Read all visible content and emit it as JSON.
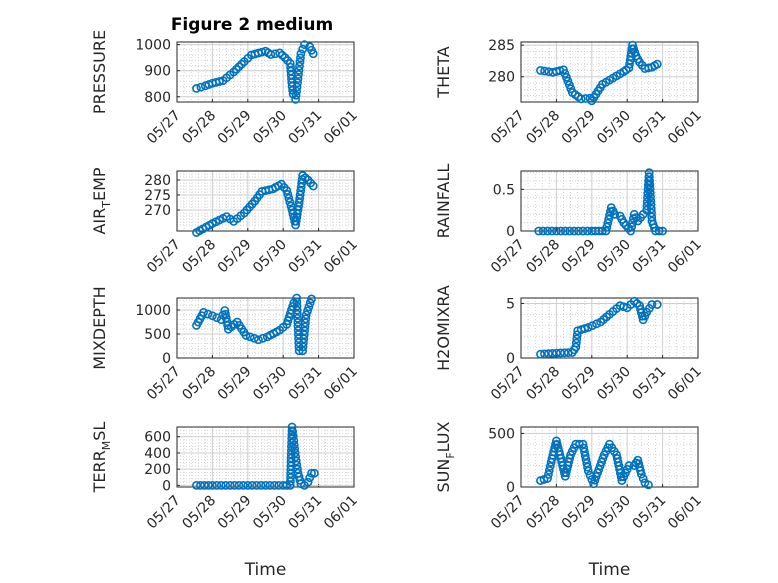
{
  "figure": {
    "title": "Figure 2 medium"
  },
  "chart_data": [
    {
      "type": "scatter",
      "name": "PRESSURE",
      "ylabel": "PRESSURE",
      "xlim": [
        "05/27",
        "06/01"
      ],
      "ylim": [
        780,
        1010
      ],
      "yticks": [
        800,
        900,
        1000
      ],
      "ytick_labels": [
        "800",
        "900",
        "1000"
      ],
      "xticks": [
        "05/27",
        "05/28",
        "05/29",
        "05/30",
        "05/31",
        "06/01"
      ],
      "xlabel": "",
      "points": [
        [
          0.55,
          832
        ],
        [
          0.8,
          842
        ],
        [
          1.0,
          852
        ],
        [
          1.3,
          862
        ],
        [
          1.6,
          895
        ],
        [
          1.9,
          935
        ],
        [
          2.1,
          960
        ],
        [
          2.5,
          975
        ],
        [
          2.65,
          962
        ],
        [
          2.9,
          968
        ],
        [
          3.05,
          950
        ],
        [
          3.2,
          928
        ],
        [
          3.25,
          840
        ],
        [
          3.28,
          810
        ],
        [
          3.35,
          790
        ],
        [
          3.5,
          965
        ],
        [
          3.6,
          1000
        ],
        [
          3.75,
          992
        ],
        [
          3.85,
          965
        ]
      ]
    },
    {
      "type": "scatter",
      "name": "THETA",
      "ylabel": "THETA",
      "xlim": [
        "05/27",
        "06/01"
      ],
      "ylim": [
        276,
        285.5
      ],
      "yticks": [
        280,
        285
      ],
      "ytick_labels": [
        "280",
        "285"
      ],
      "xticks": [
        "05/27",
        "05/28",
        "05/29",
        "05/30",
        "05/31",
        "06/01"
      ],
      "xlabel": "",
      "points": [
        [
          0.55,
          281
        ],
        [
          0.9,
          280.7
        ],
        [
          1.2,
          281.1
        ],
        [
          1.45,
          277.5
        ],
        [
          1.7,
          276.5
        ],
        [
          1.95,
          276.6
        ],
        [
          2.0,
          276.2
        ],
        [
          2.3,
          278.8
        ],
        [
          2.6,
          279.8
        ],
        [
          2.9,
          280.8
        ],
        [
          3.05,
          281.4
        ],
        [
          3.15,
          285
        ],
        [
          3.25,
          283.3
        ],
        [
          3.35,
          282.3
        ],
        [
          3.5,
          281.3
        ],
        [
          3.7,
          281.5
        ],
        [
          3.85,
          282
        ]
      ]
    },
    {
      "type": "scatter",
      "name": "AIR_TEMP",
      "ylabel": "AIR_TEMP",
      "xlim": [
        "05/27",
        "06/01"
      ],
      "ylim": [
        263,
        283
      ],
      "yticks": [
        270,
        275,
        280
      ],
      "ytick_labels": [
        "270",
        "275",
        "280"
      ],
      "xticks": [
        "05/27",
        "05/28",
        "05/29",
        "05/30",
        "05/31",
        "06/01"
      ],
      "xlabel": "",
      "points": [
        [
          0.55,
          262.5
        ],
        [
          1.0,
          265.5
        ],
        [
          1.4,
          267.8
        ],
        [
          1.6,
          266.2
        ],
        [
          1.9,
          269
        ],
        [
          2.2,
          273
        ],
        [
          2.4,
          276.2
        ],
        [
          2.7,
          277
        ],
        [
          2.95,
          278.6
        ],
        [
          3.1,
          276.5
        ],
        [
          3.25,
          270
        ],
        [
          3.3,
          267.5
        ],
        [
          3.35,
          265
        ],
        [
          3.45,
          272.5
        ],
        [
          3.55,
          281.5
        ],
        [
          3.7,
          280
        ],
        [
          3.85,
          278
        ]
      ]
    },
    {
      "type": "scatter",
      "name": "RAINFALL",
      "ylabel": "RAINFALL",
      "xlim": [
        "05/27",
        "06/01"
      ],
      "ylim": [
        0,
        0.72
      ],
      "yticks": [
        0,
        0.5
      ],
      "ytick_labels": [
        "0",
        "0.5"
      ],
      "xticks": [
        "05/27",
        "05/28",
        "05/29",
        "05/30",
        "05/31",
        "06/01"
      ],
      "xlabel": "",
      "points": [
        [
          0.5,
          0
        ],
        [
          1.0,
          0
        ],
        [
          1.5,
          0
        ],
        [
          2.0,
          0
        ],
        [
          2.4,
          0
        ],
        [
          2.55,
          0.28
        ],
        [
          2.65,
          0.2
        ],
        [
          2.8,
          0.18
        ],
        [
          2.9,
          0.1
        ],
        [
          3.1,
          0
        ],
        [
          3.2,
          0.2
        ],
        [
          3.3,
          0.12
        ],
        [
          3.45,
          0.2
        ],
        [
          3.55,
          0.25
        ],
        [
          3.62,
          0.7
        ],
        [
          3.7,
          0.12
        ],
        [
          3.8,
          0
        ],
        [
          4.0,
          0
        ]
      ]
    },
    {
      "type": "scatter",
      "name": "MIXDEPTH",
      "ylabel": "MIXDEPTH",
      "xlim": [
        "05/27",
        "06/01"
      ],
      "ylim": [
        0,
        1250
      ],
      "yticks": [
        0,
        500,
        1000
      ],
      "ytick_labels": [
        "0",
        "500",
        "1000"
      ],
      "xticks": [
        "05/27",
        "05/28",
        "05/29",
        "05/30",
        "05/31",
        "06/01"
      ],
      "xlabel": "",
      "points": [
        [
          0.55,
          680
        ],
        [
          0.75,
          950
        ],
        [
          1.0,
          880
        ],
        [
          1.25,
          800
        ],
        [
          1.35,
          990
        ],
        [
          1.45,
          600
        ],
        [
          1.7,
          750
        ],
        [
          1.95,
          470
        ],
        [
          2.3,
          380
        ],
        [
          2.55,
          440
        ],
        [
          2.9,
          580
        ],
        [
          3.1,
          700
        ],
        [
          3.3,
          1150
        ],
        [
          3.38,
          1250
        ],
        [
          3.45,
          150
        ],
        [
          3.55,
          150
        ],
        [
          3.65,
          900
        ],
        [
          3.8,
          1230
        ]
      ]
    },
    {
      "type": "scatter",
      "name": "H2OMIXRA",
      "ylabel": "H2OMIXRA",
      "xlim": [
        "05/27",
        "06/01"
      ],
      "ylim": [
        0,
        5.5
      ],
      "yticks": [
        0,
        5
      ],
      "ytick_labels": [
        "0",
        "5"
      ],
      "xticks": [
        "05/27",
        "05/28",
        "05/29",
        "05/30",
        "05/31",
        "06/01"
      ],
      "xlabel": "",
      "points": [
        [
          0.55,
          0.35
        ],
        [
          1.0,
          0.45
        ],
        [
          1.45,
          0.5
        ],
        [
          1.55,
          1.0
        ],
        [
          1.6,
          2.5
        ],
        [
          1.9,
          2.8
        ],
        [
          2.25,
          3.3
        ],
        [
          2.5,
          4.0
        ],
        [
          2.8,
          4.8
        ],
        [
          3.0,
          4.6
        ],
        [
          3.2,
          5.2
        ],
        [
          3.35,
          4.8
        ],
        [
          3.45,
          3.5
        ],
        [
          3.55,
          4.2
        ],
        [
          3.7,
          4.9
        ],
        [
          3.85,
          4.9
        ]
      ]
    },
    {
      "type": "scatter",
      "name": "TERR_MSL",
      "ylabel": "TERR_MSL",
      "xlim": [
        "05/27",
        "06/01"
      ],
      "ylim": [
        -20,
        720
      ],
      "yticks": [
        0,
        200,
        400,
        600
      ],
      "ytick_labels": [
        "0",
        "200",
        "400",
        "600"
      ],
      "xticks": [
        "05/27",
        "05/28",
        "05/29",
        "05/30",
        "05/31",
        "06/01"
      ],
      "xlabel": "Time",
      "points": [
        [
          0.55,
          0
        ],
        [
          1.0,
          0
        ],
        [
          1.5,
          0
        ],
        [
          2.0,
          0
        ],
        [
          2.5,
          0
        ],
        [
          3.0,
          0
        ],
        [
          3.2,
          0
        ],
        [
          3.25,
          720
        ],
        [
          3.3,
          550
        ],
        [
          3.35,
          350
        ],
        [
          3.42,
          150
        ],
        [
          3.5,
          20
        ],
        [
          3.6,
          0
        ],
        [
          3.7,
          40
        ],
        [
          3.8,
          150
        ],
        [
          3.88,
          150
        ]
      ]
    },
    {
      "type": "scatter",
      "name": "SUN_FLUX",
      "ylabel": "SUN_FLUX",
      "xlim": [
        "05/27",
        "06/01"
      ],
      "ylim": [
        0,
        560
      ],
      "yticks": [
        0,
        500
      ],
      "ytick_labels": [
        "0",
        "500"
      ],
      "xticks": [
        "05/27",
        "05/28",
        "05/29",
        "05/30",
        "05/31",
        "06/01"
      ],
      "xlabel": "Time",
      "points": [
        [
          0.55,
          60
        ],
        [
          0.75,
          80
        ],
        [
          0.85,
          230
        ],
        [
          1.0,
          430
        ],
        [
          1.1,
          300
        ],
        [
          1.25,
          100
        ],
        [
          1.4,
          300
        ],
        [
          1.55,
          400
        ],
        [
          1.75,
          400
        ],
        [
          1.9,
          150
        ],
        [
          2.05,
          30
        ],
        [
          2.35,
          300
        ],
        [
          2.5,
          400
        ],
        [
          2.7,
          300
        ],
        [
          2.85,
          60
        ],
        [
          3.05,
          200
        ],
        [
          3.2,
          200
        ],
        [
          3.3,
          250
        ],
        [
          3.4,
          120
        ],
        [
          3.5,
          40
        ],
        [
          3.6,
          20
        ]
      ]
    }
  ]
}
